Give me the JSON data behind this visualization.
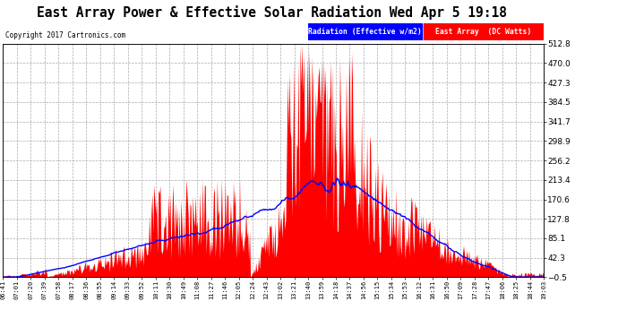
{
  "title": "East Array Power & Effective Solar Radiation Wed Apr 5 19:18",
  "copyright": "Copyright 2017 Cartronics.com",
  "legend_labels": [
    "Radiation (Effective w/m2)",
    "East Array  (DC Watts)"
  ],
  "legend_colors": [
    "blue",
    "red"
  ],
  "y_right_ticks": [
    512.8,
    470.0,
    427.3,
    384.5,
    341.7,
    298.9,
    256.2,
    213.4,
    170.6,
    127.8,
    85.1,
    42.3,
    -0.5
  ],
  "ylim": [
    -0.5,
    512.8
  ],
  "background_color": "#ffffff",
  "plot_bg_color": "#ffffff",
  "title_fontsize": 11,
  "grid_color": "#aaaaaa",
  "x_labels": [
    "06:41",
    "07:01",
    "07:20",
    "07:39",
    "07:58",
    "08:17",
    "08:36",
    "08:55",
    "09:14",
    "09:33",
    "09:52",
    "10:11",
    "10:30",
    "10:49",
    "11:08",
    "11:27",
    "11:46",
    "12:05",
    "12:24",
    "12:43",
    "13:02",
    "13:21",
    "13:40",
    "13:59",
    "14:18",
    "14:37",
    "14:56",
    "15:15",
    "15:34",
    "15:53",
    "16:12",
    "16:31",
    "16:50",
    "17:09",
    "17:28",
    "17:47",
    "18:06",
    "18:25",
    "18:44",
    "19:03"
  ]
}
